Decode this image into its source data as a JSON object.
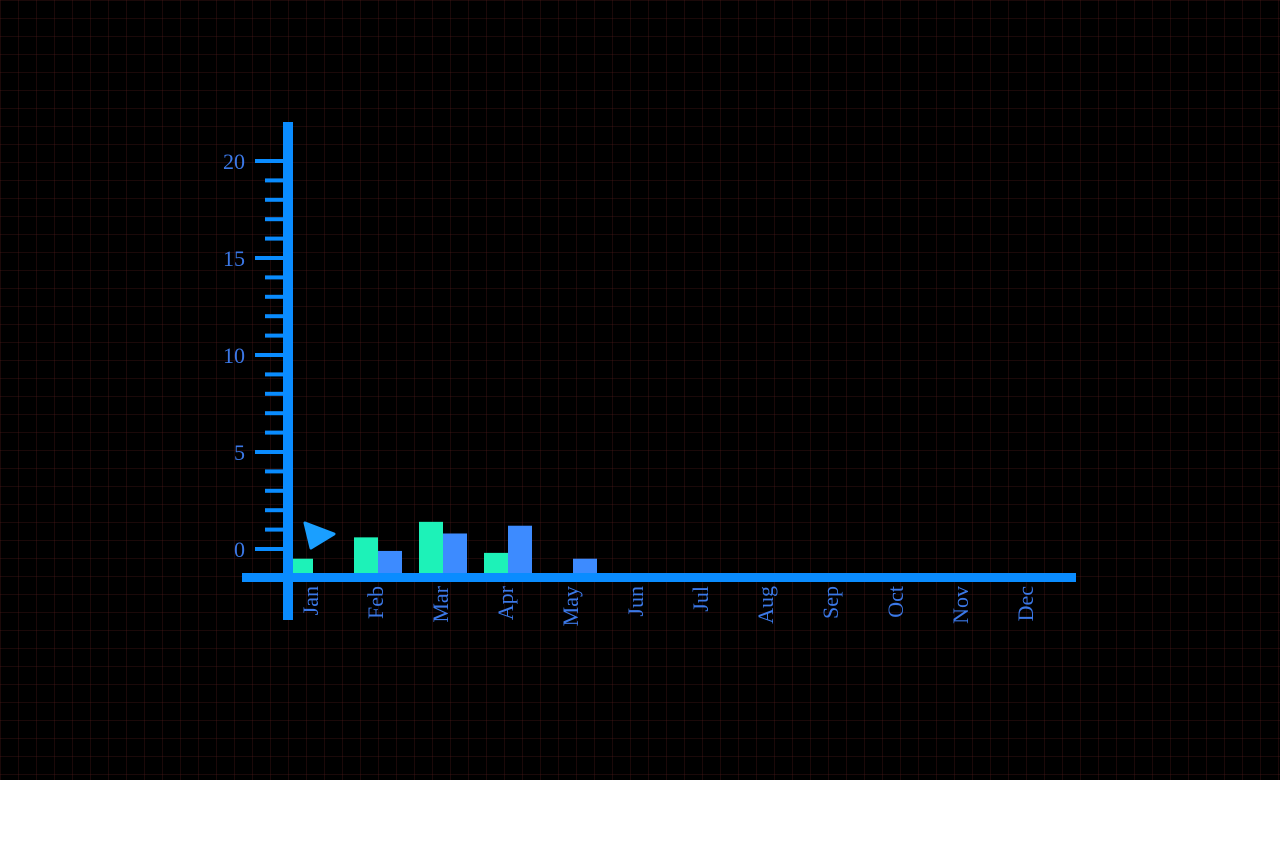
{
  "chart_data": {
    "type": "bar",
    "title": "",
    "xlabel": "",
    "ylabel": "",
    "ylim": [
      -1.4,
      22
    ],
    "ytick_labels": [
      "0",
      "5",
      "10",
      "15",
      "20"
    ],
    "ytick_values": [
      0,
      5,
      10,
      15,
      20
    ],
    "minor_ytick_step": 1,
    "grid": true,
    "categories": [
      "Jan",
      "Feb",
      "Mar",
      "Apr",
      "May",
      "Jun",
      "Jul",
      "Aug",
      "Sep",
      "Oct",
      "Nov",
      "Dec"
    ],
    "series": [
      {
        "values": [
          null,
          -0.1,
          0.8,
          1.2,
          -0.5,
          null,
          null,
          null,
          null,
          null,
          null,
          null
        ]
      },
      {
        "values": [
          -0.5,
          0.6,
          1.4,
          -0.2,
          null,
          null,
          null,
          null,
          null,
          null,
          null,
          null
        ]
      }
    ],
    "colors": {
      "axis": "#0a8cff",
      "label": "#3b78e7",
      "series_a": "#3d8bff",
      "series_b": "#1df2b8",
      "marker": "#1a9fff"
    },
    "marker_icon": "triangle-pointer-icon"
  }
}
